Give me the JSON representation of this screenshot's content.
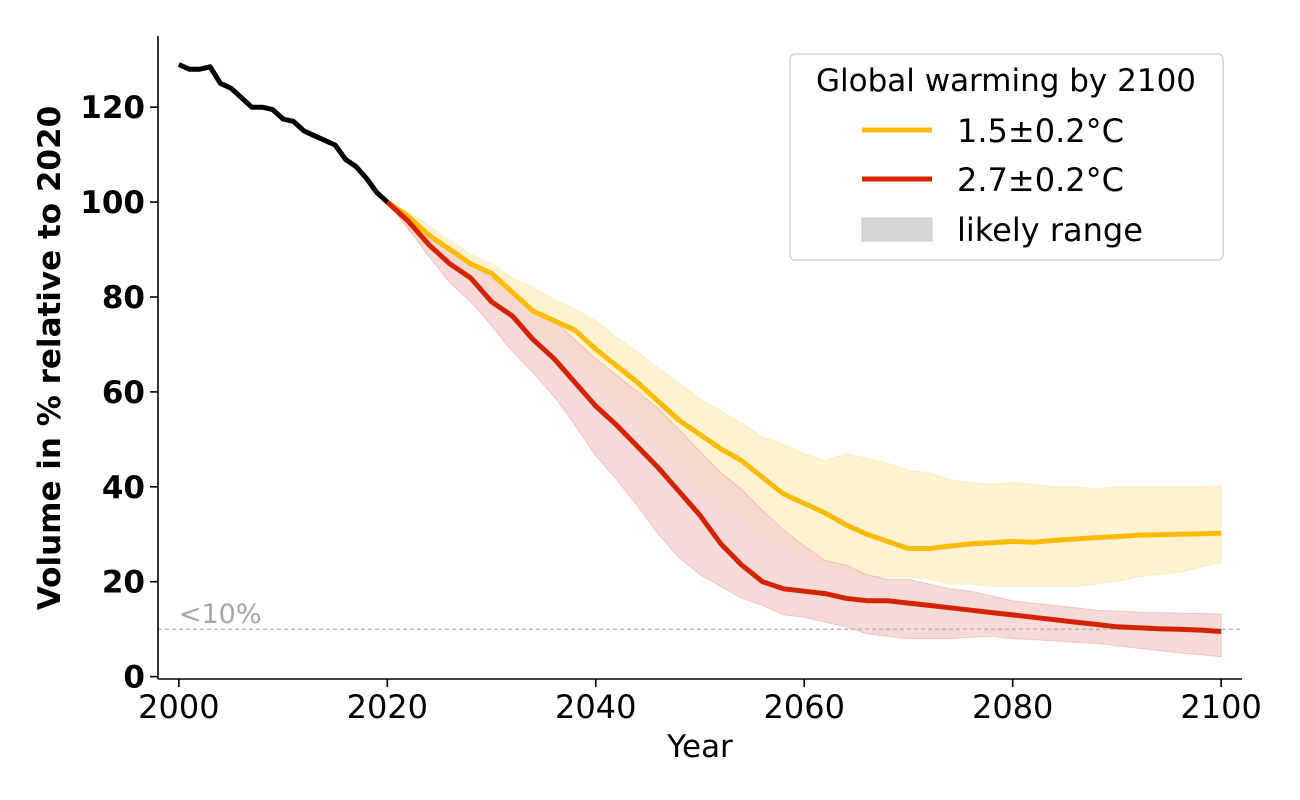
{
  "chart_data": {
    "type": "line",
    "title": "",
    "xlabel": "Year",
    "ylabel": "Volume in % relative to 2020",
    "xlim": [
      1998,
      2102
    ],
    "ylim": [
      -0.5,
      135
    ],
    "xticks": [
      2000,
      2020,
      2040,
      2060,
      2080,
      2100
    ],
    "yticks": [
      0,
      20,
      40,
      60,
      80,
      100,
      120
    ],
    "threshold": {
      "value": 10,
      "label": "<10%"
    },
    "legend": {
      "title": "Global warming by 2100",
      "placement": "top-right",
      "entries": [
        {
          "label": "1.5±0.2°C",
          "kind": "line",
          "color": "#fbbb04"
        },
        {
          "label": "2.7±0.2°C",
          "kind": "line",
          "color": "#d42302"
        },
        {
          "label": "likely range",
          "kind": "patch",
          "color": "#d6d6d6"
        }
      ]
    },
    "series": [
      {
        "name": "observed",
        "color": "#000000",
        "x": [
          2000,
          2001,
          2002,
          2003,
          2004,
          2005,
          2006,
          2007,
          2008,
          2009,
          2010,
          2011,
          2012,
          2013,
          2014,
          2015,
          2016,
          2017,
          2018,
          2019,
          2020
        ],
        "values": [
          129,
          128,
          128,
          128.5,
          125,
          124,
          122,
          120,
          120,
          119.5,
          117.5,
          117,
          115,
          114,
          113,
          112,
          109,
          107.5,
          105,
          102,
          100
        ]
      },
      {
        "name": "1.5±0.2°C",
        "color": "#fbbb04",
        "band_color": "#fff0c9",
        "x": [
          2020,
          2022,
          2024,
          2026,
          2028,
          2030,
          2032,
          2034,
          2036,
          2038,
          2040,
          2042,
          2044,
          2046,
          2048,
          2050,
          2052,
          2054,
          2056,
          2058,
          2060,
          2062,
          2064,
          2066,
          2068,
          2070,
          2072,
          2074,
          2076,
          2078,
          2080,
          2082,
          2084,
          2086,
          2088,
          2090,
          2092,
          2094,
          2096,
          2098,
          2100
        ],
        "values": [
          100,
          97,
          93,
          90,
          87,
          85,
          81,
          77,
          75,
          73,
          69,
          65.5,
          62,
          58,
          54,
          51,
          48,
          45.5,
          42,
          38.5,
          36.5,
          34.5,
          32,
          30,
          28.5,
          27,
          27,
          27.5,
          28,
          28.2,
          28.5,
          28.3,
          28.7,
          29,
          29.3,
          29.5,
          29.8,
          29.9,
          30,
          30.1,
          30.2
        ],
        "upper": [
          100,
          98,
          95,
          92,
          89,
          87,
          84,
          82,
          79.5,
          77.5,
          75,
          71.5,
          68.5,
          65,
          62,
          58.5,
          56,
          53.5,
          50.5,
          49,
          47,
          45.5,
          47,
          46,
          45,
          43.5,
          43,
          41.5,
          41,
          40.5,
          41,
          40.5,
          40,
          40,
          39.5,
          40,
          40,
          40,
          40,
          40,
          40.2
        ],
        "lower": [
          100,
          94,
          90,
          87,
          83.5,
          79.5,
          76.5,
          72.5,
          68.5,
          65.5,
          61,
          57.5,
          53,
          48,
          43,
          39,
          36,
          33.5,
          30,
          27.5,
          25,
          23.5,
          22,
          21,
          21,
          21,
          20.5,
          19.5,
          19.5,
          19,
          19,
          19,
          19,
          19,
          19.5,
          20,
          21,
          21.5,
          22,
          23,
          24
        ]
      },
      {
        "name": "2.7±0.2°C",
        "color": "#d42302",
        "band_color": "#f5d4d1",
        "x": [
          2020,
          2022,
          2024,
          2026,
          2028,
          2030,
          2032,
          2034,
          2036,
          2038,
          2040,
          2042,
          2044,
          2046,
          2048,
          2050,
          2052,
          2054,
          2056,
          2058,
          2060,
          2062,
          2064,
          2066,
          2068,
          2070,
          2072,
          2074,
          2076,
          2078,
          2080,
          2082,
          2084,
          2086,
          2088,
          2090,
          2092,
          2094,
          2096,
          2098,
          2100
        ],
        "values": [
          100,
          96,
          91,
          87,
          84,
          79,
          76,
          71,
          67,
          62,
          57,
          53,
          48.5,
          44,
          39,
          34,
          28,
          23.5,
          20,
          18.5,
          18,
          17.5,
          16.5,
          16,
          16,
          15.5,
          15,
          14.5,
          14,
          13.5,
          13,
          12.5,
          12,
          11.5,
          11,
          10.5,
          10.3,
          10.1,
          10,
          9.8,
          9.5
        ],
        "upper": [
          100,
          96,
          93,
          89.5,
          87,
          84,
          81,
          77.5,
          75,
          71,
          67,
          63.5,
          60,
          56.5,
          52,
          47.5,
          43,
          39.5,
          35,
          31,
          27.5,
          24.5,
          23.5,
          21.5,
          20.5,
          20.5,
          19.5,
          18.5,
          18,
          17,
          16,
          15.5,
          15,
          14.5,
          14,
          13.8,
          13.6,
          13.5,
          13.4,
          13.3,
          13.2
        ],
        "lower": [
          100,
          94.5,
          88.5,
          83,
          79,
          74,
          68.5,
          64,
          59,
          53,
          46.5,
          41.5,
          36,
          30,
          25,
          21.5,
          19,
          16.5,
          15,
          13,
          12.5,
          11.5,
          10.5,
          9,
          8.5,
          8,
          8,
          8,
          8.3,
          8.5,
          8,
          7.8,
          7.5,
          7.2,
          7,
          6.5,
          6,
          5.5,
          5,
          4.6,
          4.2
        ]
      }
    ]
  }
}
